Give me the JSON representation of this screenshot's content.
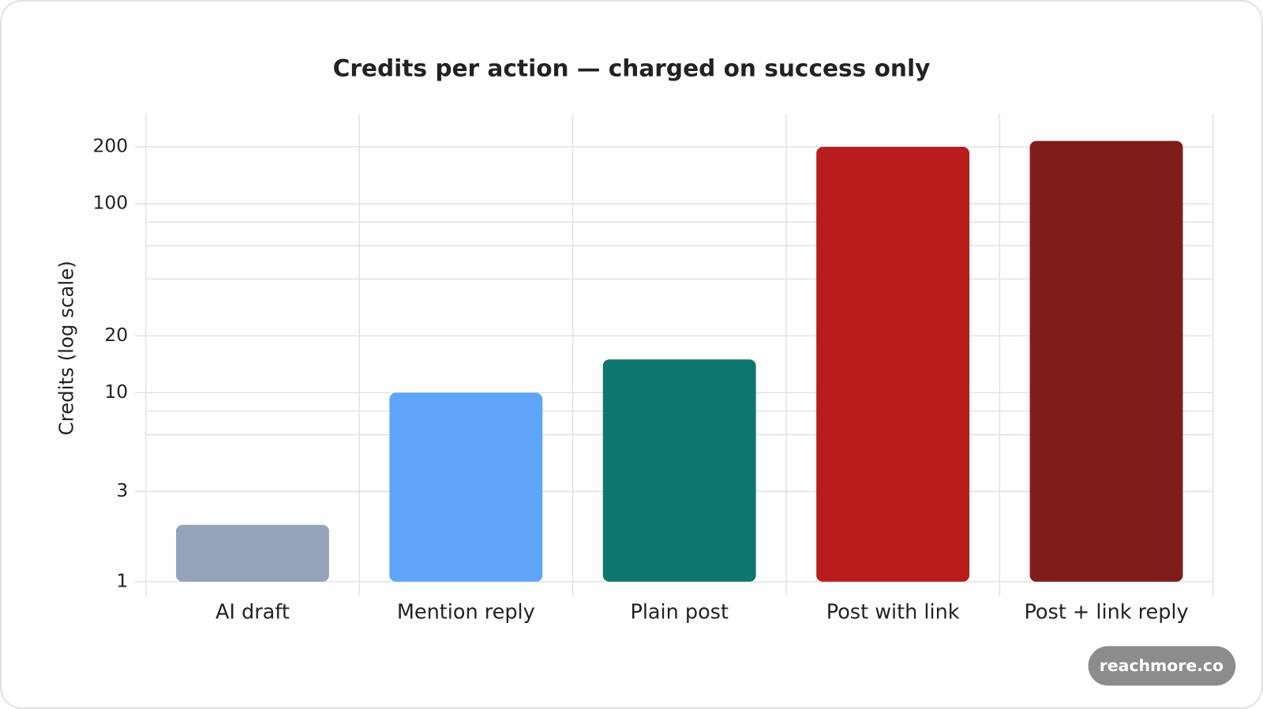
{
  "chart_data": {
    "type": "bar",
    "title": "Credits per action — charged on success only",
    "y_label": "Credits (log scale)",
    "categories": [
      "AI draft",
      "Mention reply",
      "Plain post",
      "Post with link",
      "Post + link reply"
    ],
    "values": [
      2,
      10,
      15,
      200,
      215
    ],
    "colors": [
      "#94a3b8",
      "#60a5fa",
      "#0f766e",
      "#b91c1c",
      "#7f1d1d"
    ],
    "ylim": [
      1,
      300
    ],
    "yticks": [
      1,
      3,
      10,
      20,
      100,
      200
    ],
    "y_minor_gridlines": [
      6,
      8,
      40,
      60,
      80
    ],
    "log_scale": true,
    "grid": true,
    "badge": "reachmore.co"
  }
}
